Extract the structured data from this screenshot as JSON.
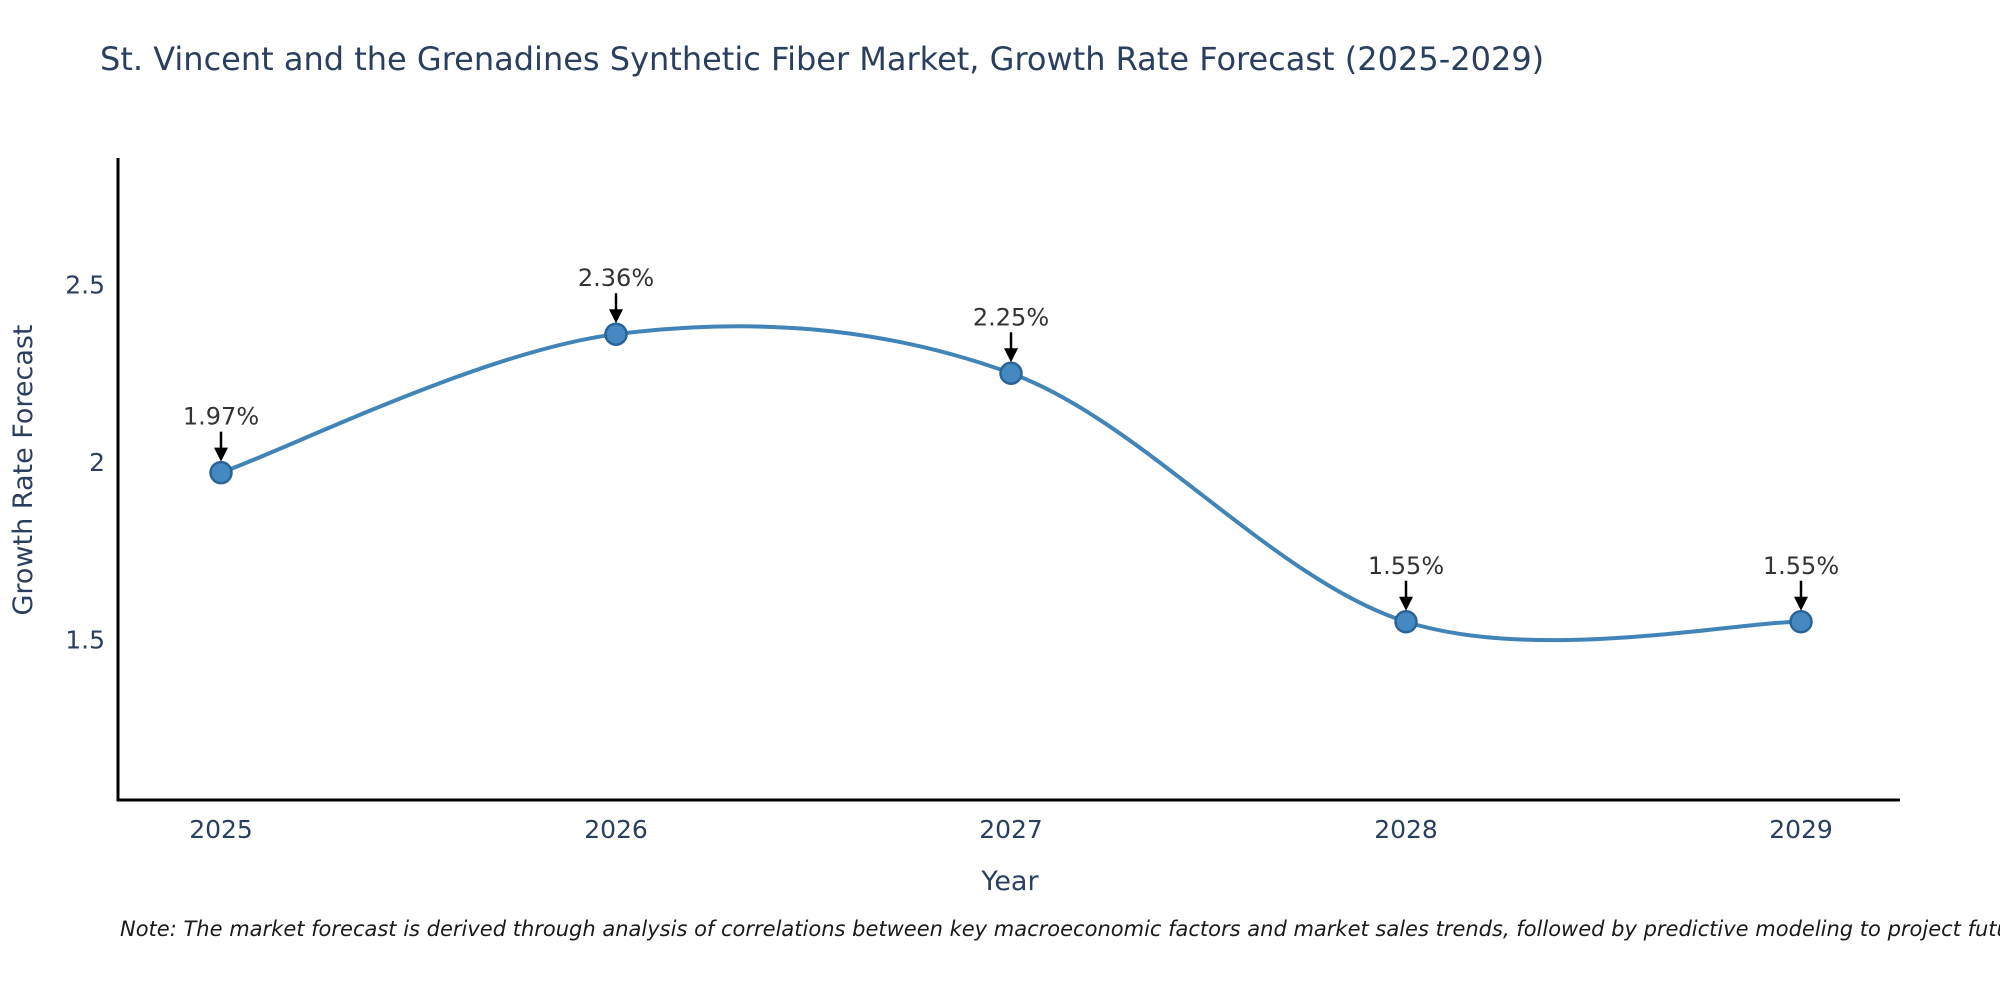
{
  "chart_data": {
    "type": "line",
    "title": "St. Vincent and the Grenadines Synthetic Fiber Market, Growth Rate Forecast (2025-2029)",
    "x": [
      2025,
      2026,
      2027,
      2028,
      2029
    ],
    "x_labels": [
      "2025",
      "2026",
      "2027",
      "2028",
      "2029"
    ],
    "values": [
      1.97,
      2.36,
      2.25,
      1.55,
      1.55
    ],
    "point_labels": [
      "1.97%",
      "2.36%",
      "2.25%",
      "1.55%",
      "1.55%"
    ],
    "xlabel": "Year",
    "ylabel": "Growth Rate Forecast",
    "ytick_values": [
      1.5,
      2,
      2.5
    ],
    "ytick_labels": [
      "1.5",
      "2",
      "2.5"
    ],
    "ylim": [
      1.05,
      2.86
    ],
    "line_shape": "spline",
    "grid": false,
    "legend_position": "none",
    "colors": {
      "line": "#4184b8",
      "marker_fill": "#4589c2",
      "marker_edge": "#2a6496",
      "annotation_arrow": "#000000",
      "annotation_text": "#333333",
      "axis_line": "#000000",
      "label_text": "#2a3f5f"
    }
  },
  "note": "Note: The market forecast is derived through analysis of correlations between key macroeconomic factors and market sales trends, followed by predictive modeling to project future sales"
}
